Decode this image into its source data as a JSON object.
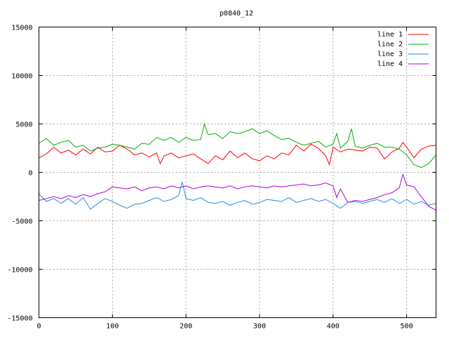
{
  "chart_data": {
    "type": "line",
    "title": "p0840_12",
    "xlabel": "",
    "ylabel": "",
    "xlim": [
      0,
      540
    ],
    "ylim": [
      -15000,
      15000
    ],
    "grid": true,
    "legend_position": "top-right",
    "x_ticks": [
      0,
      100,
      200,
      300,
      400,
      500
    ],
    "y_ticks": [
      -15000,
      -10000,
      -5000,
      0,
      5000,
      10000,
      15000
    ],
    "x_tick_labels": [
      "0",
      "100",
      "200",
      "300",
      "400",
      "500"
    ],
    "y_tick_labels": [
      "-15000",
      "-10000",
      "-5000",
      "0",
      "5000",
      "10000",
      "15000"
    ],
    "series": [
      {
        "name": "line 1",
        "color": "#ff0000",
        "x": [
          0,
          10,
          20,
          30,
          40,
          50,
          60,
          70,
          80,
          90,
          100,
          110,
          120,
          130,
          140,
          150,
          160,
          165,
          170,
          180,
          190,
          200,
          210,
          220,
          230,
          240,
          250,
          260,
          270,
          280,
          290,
          300,
          310,
          320,
          330,
          340,
          350,
          360,
          370,
          380,
          390,
          395,
          400,
          410,
          420,
          430,
          440,
          450,
          460,
          470,
          480,
          490,
          495,
          500,
          510,
          520,
          530,
          540
        ],
        "y": [
          1500,
          1900,
          2600,
          2000,
          2300,
          1800,
          2400,
          1900,
          2600,
          2100,
          2200,
          2800,
          2400,
          1800,
          2000,
          1600,
          2000,
          900,
          1700,
          2000,
          1500,
          1700,
          1900,
          1400,
          900,
          1700,
          1300,
          2200,
          1500,
          2000,
          1400,
          1200,
          1700,
          1400,
          2000,
          1800,
          2800,
          2200,
          2900,
          2500,
          1700,
          800,
          2600,
          2100,
          2400,
          2300,
          2200,
          2600,
          2500,
          1400,
          2100,
          2500,
          3100,
          2600,
          1500,
          2400,
          2700,
          2800
        ]
      },
      {
        "name": "line 2",
        "color": "#00b000",
        "x": [
          0,
          10,
          20,
          30,
          40,
          50,
          60,
          70,
          80,
          90,
          100,
          110,
          120,
          130,
          140,
          150,
          160,
          170,
          180,
          190,
          200,
          210,
          220,
          225,
          230,
          240,
          250,
          260,
          270,
          280,
          290,
          300,
          310,
          320,
          330,
          340,
          350,
          360,
          370,
          380,
          390,
          400,
          405,
          410,
          420,
          425,
          430,
          440,
          450,
          460,
          470,
          480,
          490,
          500,
          510,
          520,
          530,
          540
        ],
        "y": [
          3000,
          3500,
          2800,
          3100,
          3300,
          2600,
          2800,
          2200,
          2500,
          2600,
          2900,
          2800,
          2600,
          2400,
          3000,
          2900,
          3600,
          3300,
          3600,
          3100,
          3600,
          3300,
          3400,
          5000,
          3900,
          4000,
          3500,
          4200,
          4000,
          4200,
          4500,
          4000,
          4300,
          3800,
          3400,
          3500,
          3100,
          2800,
          3000,
          3200,
          2600,
          2900,
          4000,
          2500,
          3200,
          4500,
          2700,
          2500,
          2800,
          3000,
          2600,
          2600,
          2400,
          1800,
          800,
          500,
          900,
          1800
        ]
      },
      {
        "name": "line 3",
        "color": "#1f8fdf",
        "x": [
          0,
          10,
          20,
          30,
          40,
          50,
          60,
          70,
          80,
          90,
          100,
          110,
          120,
          130,
          140,
          150,
          160,
          170,
          180,
          190,
          195,
          200,
          210,
          220,
          230,
          240,
          250,
          260,
          270,
          280,
          290,
          300,
          310,
          320,
          330,
          340,
          350,
          360,
          370,
          380,
          390,
          400,
          410,
          420,
          430,
          440,
          450,
          460,
          470,
          480,
          490,
          500,
          510,
          520,
          530,
          540
        ],
        "y": [
          -2200,
          -3000,
          -2700,
          -3200,
          -2700,
          -3300,
          -2600,
          -3800,
          -3200,
          -2700,
          -3000,
          -3400,
          -3700,
          -3300,
          -3200,
          -2900,
          -2600,
          -3000,
          -2800,
          -2400,
          -1000,
          -2700,
          -2900,
          -2600,
          -3100,
          -3200,
          -3000,
          -3400,
          -3100,
          -2900,
          -3300,
          -3100,
          -2800,
          -2900,
          -3000,
          -2600,
          -3100,
          -2900,
          -2700,
          -3000,
          -2800,
          -3200,
          -3700,
          -3100,
          -3000,
          -3200,
          -3000,
          -2800,
          -3100,
          -2700,
          -3200,
          -2800,
          -3300,
          -3000,
          -3400,
          -3200
        ]
      },
      {
        "name": "line 4",
        "color": "#b000e0",
        "x": [
          0,
          10,
          20,
          30,
          40,
          50,
          60,
          70,
          80,
          90,
          100,
          110,
          120,
          130,
          140,
          150,
          160,
          170,
          180,
          190,
          200,
          210,
          220,
          230,
          240,
          250,
          260,
          270,
          280,
          290,
          300,
          310,
          320,
          330,
          340,
          350,
          360,
          370,
          380,
          390,
          400,
          405,
          410,
          420,
          430,
          440,
          450,
          460,
          470,
          480,
          490,
          495,
          500,
          510,
          520,
          530,
          540
        ],
        "y": [
          -2900,
          -2700,
          -2500,
          -2700,
          -2400,
          -2600,
          -2300,
          -2500,
          -2200,
          -2000,
          -1500,
          -1600,
          -1700,
          -1500,
          -1900,
          -1600,
          -1500,
          -1700,
          -1400,
          -1600,
          -1400,
          -1700,
          -1500,
          -1400,
          -1500,
          -1600,
          -1400,
          -1700,
          -1500,
          -1400,
          -1500,
          -1600,
          -1400,
          -1500,
          -1400,
          -1300,
          -1200,
          -1400,
          -1300,
          -1100,
          -1400,
          -2600,
          -1700,
          -3100,
          -2900,
          -3000,
          -2800,
          -2600,
          -2300,
          -2100,
          -1600,
          -200,
          -1300,
          -1500,
          -2500,
          -3500,
          -3900
        ]
      }
    ]
  }
}
